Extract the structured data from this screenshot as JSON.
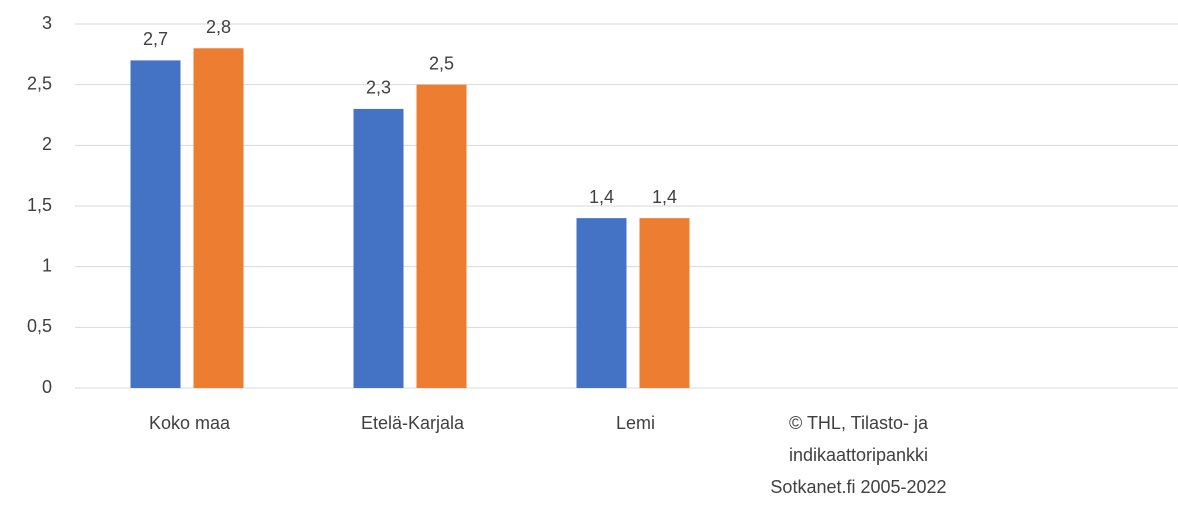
{
  "chart_data": {
    "type": "bar",
    "categories": [
      "Koko maa",
      "Etelä-Karjala",
      "Lemi",
      "© THL, Tilasto- ja indikaattoripankki Sotkanet.fi 2005-2022"
    ],
    "series": [
      {
        "color": "#4472c4",
        "values": [
          2.7,
          2.3,
          1.4,
          null
        ],
        "value_labels": [
          "2,7",
          "2,3",
          "1,4",
          null
        ]
      },
      {
        "color": "#ed7d31",
        "values": [
          2.8,
          2.5,
          1.4,
          null
        ],
        "value_labels": [
          "2,8",
          "2,5",
          "1,4",
          null
        ]
      }
    ],
    "ylim": [
      0,
      3
    ],
    "yticks": [
      0,
      {
        "value": 0.5,
        "label": "0,5"
      },
      1,
      {
        "value": 1.5,
        "label": "1,5"
      },
      2,
      {
        "value": 2.5,
        "label": "2,5"
      },
      3
    ],
    "grid": true
  }
}
